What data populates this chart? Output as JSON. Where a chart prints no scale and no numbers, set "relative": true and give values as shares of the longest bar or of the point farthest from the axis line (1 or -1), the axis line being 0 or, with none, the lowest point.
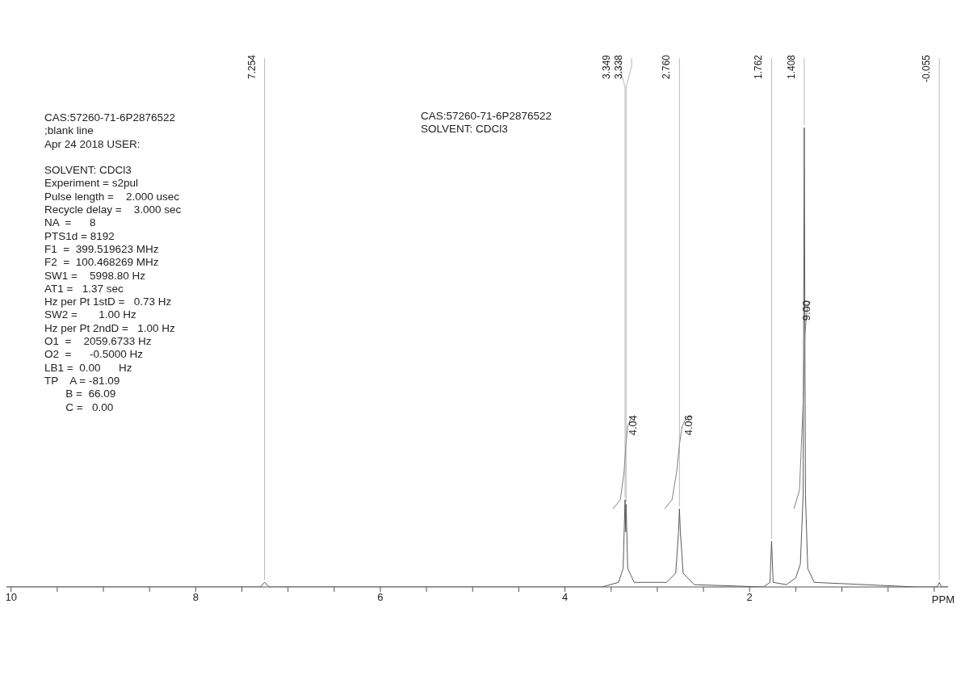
{
  "chart_data": {
    "type": "line",
    "relative": true,
    "xlabel": "PPM",
    "xlim": [
      10.05,
      -0.15
    ],
    "xticks": [
      10,
      {
        "value": 9.5,
        "label": null
      },
      {
        "value": 9,
        "label": null
      },
      {
        "value": 8.5,
        "label": null
      },
      8,
      {
        "value": 7.5,
        "label": null
      },
      {
        "value": 7,
        "label": null
      },
      {
        "value": 6.5,
        "label": null
      },
      6,
      {
        "value": 5.5,
        "label": null
      },
      {
        "value": 5,
        "label": null
      },
      {
        "value": 4.5,
        "label": null
      },
      4,
      {
        "value": 3.5,
        "label": null
      },
      {
        "value": 3,
        "label": null
      },
      {
        "value": 2.5,
        "label": null
      },
      2,
      {
        "value": 1.5,
        "label": null
      },
      {
        "value": 1,
        "label": null
      },
      {
        "value": 0.5,
        "label": null
      },
      {
        "value": 0,
        "label": null
      }
    ],
    "grid": false,
    "legend": false,
    "marker": "none",
    "line_style": "solid",
    "series": [
      {
        "color": "#5a5a5a",
        "x": [
          10.05,
          7.3,
          7.254,
          7.2,
          3.6,
          3.42,
          3.37,
          3.349,
          3.343,
          3.338,
          3.32,
          3.25,
          2.9,
          2.8,
          2.77,
          2.76,
          2.75,
          2.72,
          2.6,
          1.85,
          1.78,
          1.762,
          1.745,
          1.6,
          1.5,
          1.45,
          1.42,
          1.408,
          1.395,
          1.37,
          1.3,
          0.2,
          -0.03,
          -0.055,
          -0.08,
          -0.15
        ],
        "values": [
          0,
          0,
          0.01,
          0,
          0,
          0.01,
          0.04,
          0.19,
          0.12,
          0.18,
          0.04,
          0.01,
          0.01,
          0.03,
          0.12,
          0.17,
          0.12,
          0.03,
          0.005,
          0,
          0.01,
          0.1,
          0.01,
          0.005,
          0.02,
          0.05,
          0.2,
          1,
          0.2,
          0.04,
          0.01,
          0,
          0,
          0.01,
          0,
          0
        ]
      },
      {
        "color": "#808080",
        "x": [
          3.48,
          3.4,
          3.36,
          3.34,
          3.32,
          3.28,
          3.22
        ],
        "values": [
          0.17,
          0.19,
          0.25,
          0.31,
          0.35,
          0.37,
          0.37
        ]
      },
      {
        "color": "#808080",
        "x": [
          2.92,
          2.84,
          2.79,
          2.76,
          2.73,
          2.68,
          2.62
        ],
        "values": [
          0.17,
          0.19,
          0.25,
          0.31,
          0.35,
          0.37,
          0.37
        ]
      },
      {
        "color": "#808080",
        "x": [
          1.52,
          1.46,
          1.42,
          1.4,
          1.38,
          1.36,
          1.34
        ],
        "values": [
          0.17,
          0.21,
          0.4,
          0.55,
          0.6,
          0.62,
          0.62
        ]
      }
    ],
    "annotations": [
      "CAS:57260-71-6P2876522\n;blank line\nApr 24 2018 USER:\n\nSOLVENT: CDCl3\nExperiment = s2pul\nPulse length =    2.000 usec\nRecycle delay =    3.000 sec\nNA  =      8\nPTS1d = 8192\nF1  =  399.519623 MHz\nF2  =  100.468269 MHz\nSW1 =    5998.80 Hz\nAT1 =   1.37 sec\nHz per Pt 1stD =   0.73 Hz\nSW2 =       1.00 Hz\nHz per Pt 2ndD =   1.00 Hz\nO1  =    2059.6733 Hz\nO2  =      -0.5000 Hz\nLB1 =  0.00      Hz\nTP    A = -81.09\n       B =  66.09\n       C =   0.00",
      "CAS:57260-71-6P2876522\nSOLVENT: CDCl3",
      {
        "text": "7.254",
        "x": 7.254,
        "y": 0.01
      },
      {
        "text": "3.349",
        "x": 3.349,
        "y": 0.19
      },
      {
        "text": "3.338",
        "x": 3.338,
        "y": 0.18
      },
      {
        "text": "2.760",
        "x": 2.76,
        "y": 0.17
      },
      {
        "text": "1.762",
        "x": 1.762,
        "y": 0.1
      },
      {
        "text": "1.408",
        "x": 1.408,
        "y": 1
      },
      {
        "text": "-0.055",
        "x": -0.055,
        "y": 0.01
      },
      {
        "text": "4.04",
        "x": 3.22,
        "y": 0.37
      },
      {
        "text": "4.06",
        "x": 2.62,
        "y": 0.37
      },
      {
        "text": "9.00",
        "x": 1.34,
        "y": 0.62
      }
    ]
  }
}
